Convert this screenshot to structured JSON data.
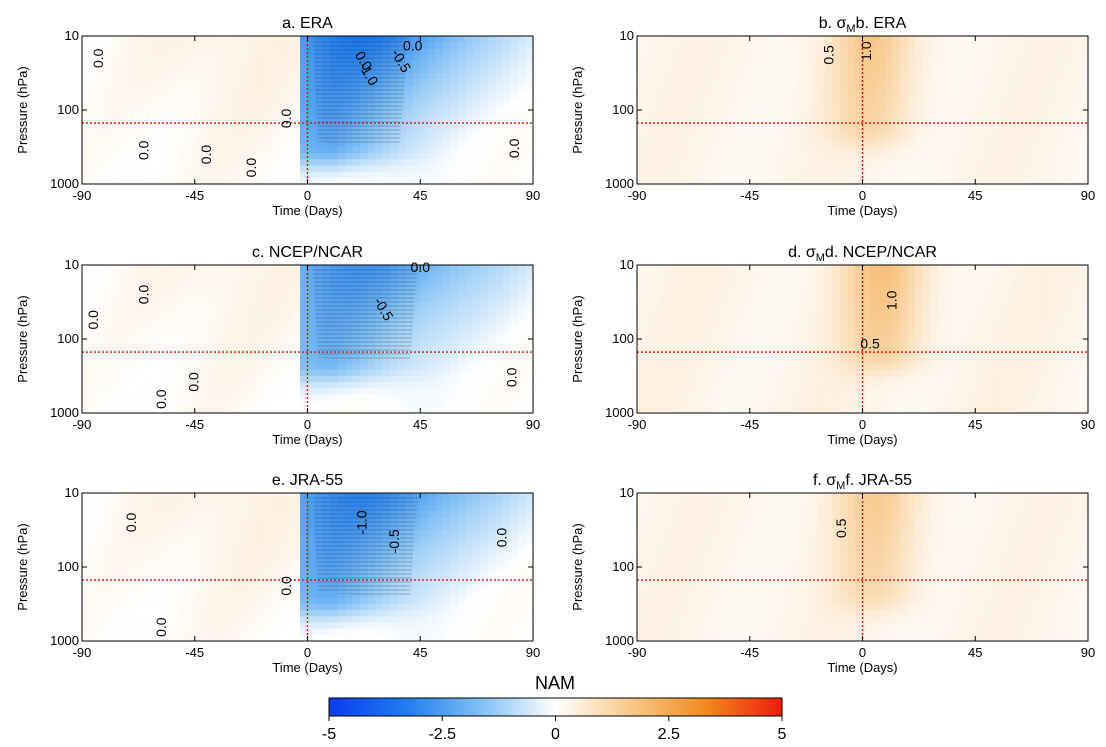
{
  "colorbar": {
    "title": "NAM",
    "min": -5,
    "max": 5,
    "ticks": [
      "-5",
      "-2.5",
      "0",
      "2.5",
      "5"
    ],
    "colors": [
      "#0b3cf0",
      "#1f7bf0",
      "#7fbff5",
      "#ffffff",
      "#f8c88a",
      "#f08a1e",
      "#ee1b0b"
    ]
  },
  "colors": {
    "frame": "#000000",
    "reference_line": "#ff0000"
  },
  "chart_data": [
    {
      "id": "a",
      "type": "heatmap",
      "title": "a. ERA",
      "title_has_sigma": false,
      "xlabel": "Time (Days)",
      "ylabel": "Pressure (hPa)",
      "xlim": [
        -90,
        90
      ],
      "xticks": [
        "-90",
        "-45",
        "0",
        "45",
        "90"
      ],
      "ylim": [
        1000,
        10
      ],
      "y_scale": "log",
      "yticks": [
        "10",
        "100",
        "1000"
      ],
      "reference_lines": {
        "x": 0,
        "y": 150
      },
      "contour_labels": [
        {
          "text": "0.0",
          "x": -83,
          "y": 20,
          "rot": -90
        },
        {
          "text": "0.0",
          "x": 22,
          "y": 22,
          "rot": 60
        },
        {
          "text": "-1.0",
          "x": 24,
          "y": 33,
          "rot": 60
        },
        {
          "text": "-0.5",
          "x": 37,
          "y": 22,
          "rot": 60
        },
        {
          "text": "0.0",
          "x": 42,
          "y": 14,
          "rot": 0
        },
        {
          "text": "0.0",
          "x": -8,
          "y": 130,
          "rot": -90
        },
        {
          "text": "0.0",
          "x": -65,
          "y": 350,
          "rot": -90
        },
        {
          "text": "0.0",
          "x": -40,
          "y": 400,
          "rot": -90
        },
        {
          "text": "0.0",
          "x": -22,
          "y": 600,
          "rot": -90
        },
        {
          "text": "0.0",
          "x": 83,
          "y": 330,
          "rot": -90
        }
      ],
      "field": {
        "pos": 0.35,
        "neg_peak": -3.5,
        "neg_extent": 50,
        "neg_lower_edge": 300
      }
    },
    {
      "id": "b",
      "type": "heatmap",
      "title": "b. ERA",
      "title_has_sigma": true,
      "xlabel": "Time (Days)",
      "ylabel": "Pressure (hPa)",
      "xlim": [
        -90,
        90
      ],
      "xticks": [
        "-90",
        "-45",
        "0",
        "45",
        "90"
      ],
      "ylim": [
        1000,
        10
      ],
      "y_scale": "log",
      "yticks": [
        "10",
        "100",
        "1000"
      ],
      "reference_lines": {
        "x": 0,
        "y": 150
      },
      "contour_labels": [
        {
          "text": "0.5",
          "x": -13,
          "y": 18,
          "rot": -90
        },
        {
          "text": "1.0",
          "x": 2,
          "y": 16,
          "rot": -90
        }
      ],
      "field": {
        "pos": 0.3,
        "peak": 1.3,
        "peak_x": 3,
        "peak_depth": 170
      }
    },
    {
      "id": "c",
      "type": "heatmap",
      "title": "c. NCEP/NCAR",
      "title_has_sigma": false,
      "xlabel": "Time (Days)",
      "ylabel": "Pressure (hPa)",
      "xlim": [
        -90,
        90
      ],
      "xticks": [
        "-90",
        "-45",
        "0",
        "45",
        "90"
      ],
      "ylim": [
        1000,
        10
      ],
      "y_scale": "log",
      "yticks": [
        "10",
        "100",
        "1000"
      ],
      "reference_lines": {
        "x": 0,
        "y": 150
      },
      "contour_labels": [
        {
          "text": "0.0",
          "x": -85,
          "y": 55,
          "rot": -90
        },
        {
          "text": "0.0",
          "x": -65,
          "y": 25,
          "rot": -90
        },
        {
          "text": "-0.5",
          "x": 30,
          "y": 40,
          "rot": 60
        },
        {
          "text": "0.0",
          "x": 45,
          "y": 11,
          "rot": 0
        },
        {
          "text": "0.0",
          "x": -58,
          "y": 650,
          "rot": -90
        },
        {
          "text": "0.0",
          "x": -45,
          "y": 380,
          "rot": -90
        },
        {
          "text": "0.0",
          "x": 82,
          "y": 330,
          "rot": -90
        }
      ],
      "field": {
        "pos": 0.3,
        "neg_peak": -2.8,
        "neg_extent": 55,
        "neg_lower_edge": 200
      }
    },
    {
      "id": "d",
      "type": "heatmap",
      "title": "d. NCEP/NCAR",
      "title_has_sigma": true,
      "xlabel": "Time (Days)",
      "ylabel": "Pressure (hPa)",
      "xlim": [
        -90,
        90
      ],
      "xticks": [
        "-90",
        "-45",
        "0",
        "45",
        "90"
      ],
      "ylim": [
        1000,
        10
      ],
      "y_scale": "log",
      "yticks": [
        "10",
        "100",
        "1000"
      ],
      "reference_lines": {
        "x": 0,
        "y": 150
      },
      "contour_labels": [
        {
          "text": "1.0",
          "x": 12,
          "y": 30,
          "rot": -90
        },
        {
          "text": "0.5",
          "x": 3,
          "y": 120,
          "rot": 0
        }
      ],
      "field": {
        "pos": 0.35,
        "peak": 1.5,
        "peak_x": 8,
        "peak_depth": 150
      }
    },
    {
      "id": "e",
      "type": "heatmap",
      "title": "e. JRA-55",
      "title_has_sigma": false,
      "xlabel": "Time (Days)",
      "ylabel": "Pressure (hPa)",
      "xlim": [
        -90,
        90
      ],
      "xticks": [
        "-90",
        "-45",
        "0",
        "45",
        "90"
      ],
      "ylim": [
        1000,
        10
      ],
      "y_scale": "log",
      "yticks": [
        "10",
        "100",
        "1000"
      ],
      "reference_lines": {
        "x": 0,
        "y": 150
      },
      "contour_labels": [
        {
          "text": "0.0",
          "x": -70,
          "y": 25,
          "rot": -90
        },
        {
          "text": "-1.0",
          "x": 22,
          "y": 25,
          "rot": -90
        },
        {
          "text": "-0.5",
          "x": 35,
          "y": 45,
          "rot": -90
        },
        {
          "text": "0.0",
          "x": 78,
          "y": 40,
          "rot": -90
        },
        {
          "text": "0.0",
          "x": -8,
          "y": 180,
          "rot": -90
        },
        {
          "text": "0.0",
          "x": -58,
          "y": 650,
          "rot": -90
        }
      ],
      "field": {
        "pos": 0.35,
        "neg_peak": -3.2,
        "neg_extent": 55,
        "neg_lower_edge": 250
      }
    },
    {
      "id": "f",
      "type": "heatmap",
      "title": "f. JRA-55",
      "title_has_sigma": true,
      "xlabel": "Time (Days)",
      "ylabel": "Pressure (hPa)",
      "xlim": [
        -90,
        90
      ],
      "xticks": [
        "-90",
        "-45",
        "0",
        "45",
        "90"
      ],
      "ylim": [
        1000,
        10
      ],
      "y_scale": "log",
      "yticks": [
        "10",
        "100",
        "1000"
      ],
      "reference_lines": {
        "x": 0,
        "y": 150
      },
      "contour_labels": [
        {
          "text": "0.5",
          "x": -8,
          "y": 30,
          "rot": -90
        }
      ],
      "field": {
        "pos": 0.3,
        "peak": 1.2,
        "peak_x": 5,
        "peak_depth": 220
      }
    }
  ]
}
